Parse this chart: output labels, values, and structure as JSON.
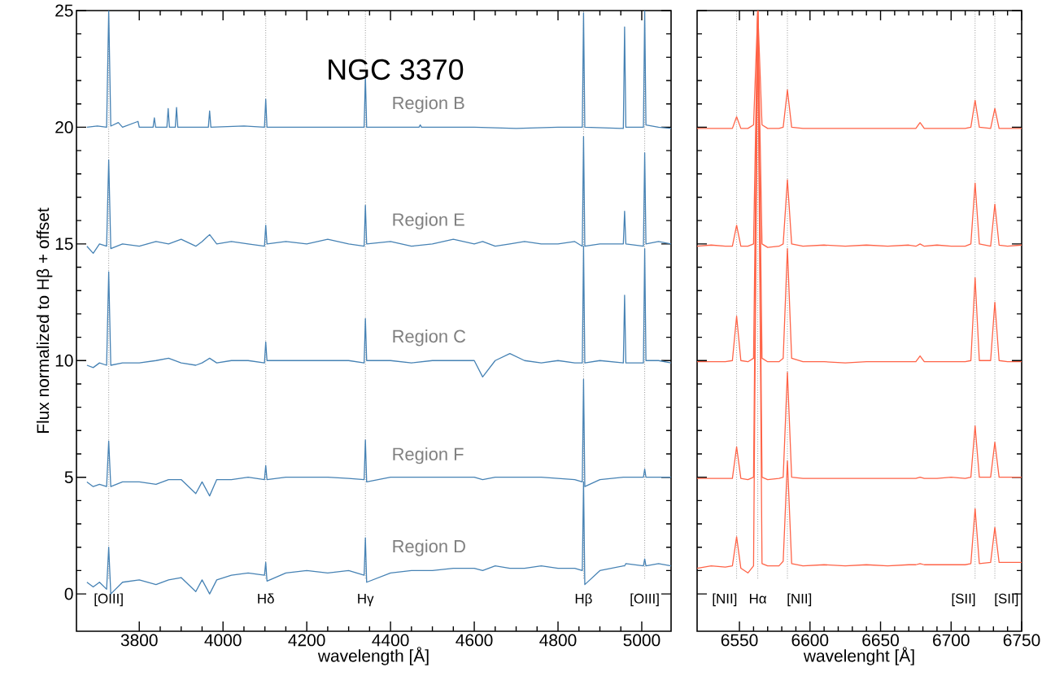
{
  "chart_data": [
    {
      "type": "line",
      "title": "NGC 3370",
      "xlabel": "wavelength [Å]",
      "ylabel": "Flux normalized to Hβ + offset",
      "xlim": [
        3650,
        5070
      ],
      "ylim": [
        -1.6,
        25
      ],
      "xticks": [
        3800,
        4000,
        4200,
        4400,
        4600,
        4800,
        5000
      ],
      "yticks": [
        0,
        5,
        10,
        15,
        20,
        25
      ],
      "series": [
        {
          "name": "Region B",
          "color": "#4682b4",
          "x": [
            3675,
            3700,
            3722,
            3727,
            3732,
            3750,
            3760,
            3797,
            3800,
            3833,
            3836,
            3839,
            3866,
            3869,
            3872,
            3886,
            3889,
            3892,
            3965,
            3968,
            3971,
            4050,
            4099,
            4102,
            4105,
            4200,
            4337,
            4340,
            4343,
            4468,
            4471,
            4474,
            4600,
            4700,
            4800,
            4858,
            4861,
            4864,
            4956,
            4959,
            4962,
            5004,
            5007,
            5010,
            5040,
            5070
          ],
          "values": [
            20.0,
            20.05,
            20.0,
            25,
            20.05,
            20.2,
            20.0,
            20.25,
            20.0,
            20.0,
            20.4,
            20.0,
            20.0,
            20.8,
            20.0,
            20.0,
            20.85,
            20.0,
            20.0,
            20.7,
            20.0,
            20.05,
            20.0,
            21.2,
            20.0,
            20.0,
            20.0,
            22.2,
            20.0,
            20.0,
            20.1,
            20.0,
            20.0,
            19.95,
            20.0,
            20.0,
            24.9,
            20.0,
            19.95,
            24.3,
            20.0,
            20.0,
            25,
            20.1,
            20.0,
            19.95
          ]
        },
        {
          "name": "Region E",
          "color": "#4682b4",
          "x": [
            3675,
            3690,
            3705,
            3722,
            3727,
            3732,
            3760,
            3800,
            3840,
            3870,
            3900,
            3935,
            3950,
            3968,
            3985,
            4020,
            4060,
            4099,
            4102,
            4105,
            4150,
            4200,
            4250,
            4300,
            4337,
            4340,
            4343,
            4400,
            4450,
            4500,
            4550,
            4600,
            4620,
            4650,
            4685,
            4720,
            4760,
            4800,
            4840,
            4858,
            4861,
            4864,
            4900,
            4956,
            4959,
            4962,
            5004,
            5007,
            5010,
            5040,
            5070
          ],
          "values": [
            14.9,
            14.6,
            15.0,
            14.9,
            18.6,
            14.8,
            15.0,
            14.9,
            15.1,
            15.0,
            15.2,
            14.9,
            15.1,
            15.4,
            15.0,
            15.1,
            15.0,
            14.9,
            15.8,
            15.0,
            15.1,
            15.0,
            15.2,
            15.0,
            14.9,
            16.65,
            15.0,
            15.1,
            14.9,
            15.0,
            15.2,
            15.0,
            15.1,
            14.9,
            15.0,
            15.1,
            15.0,
            15.0,
            15.1,
            14.9,
            19.6,
            14.9,
            15.0,
            15.0,
            16.4,
            15.0,
            14.9,
            18.9,
            15.0,
            15.1,
            15.0
          ]
        },
        {
          "name": "Region C",
          "color": "#4682b4",
          "x": [
            3675,
            3690,
            3705,
            3722,
            3727,
            3732,
            3760,
            3800,
            3840,
            3870,
            3900,
            3935,
            3950,
            3968,
            3985,
            4020,
            4060,
            4099,
            4102,
            4105,
            4150,
            4200,
            4250,
            4300,
            4337,
            4340,
            4343,
            4400,
            4450,
            4500,
            4550,
            4600,
            4620,
            4650,
            4685,
            4720,
            4760,
            4800,
            4840,
            4858,
            4861,
            4864,
            4900,
            4956,
            4959,
            4962,
            5004,
            5007,
            5010,
            5040,
            5070
          ],
          "values": [
            9.8,
            9.7,
            9.9,
            9.8,
            13.8,
            9.8,
            9.9,
            9.9,
            10.0,
            10.1,
            9.9,
            9.8,
            9.9,
            10.1,
            9.9,
            10.0,
            10.0,
            9.9,
            10.8,
            10.0,
            10.0,
            10.0,
            10.0,
            10.0,
            9.9,
            11.8,
            10.0,
            10.0,
            9.9,
            10.0,
            10.0,
            10.0,
            9.3,
            10.0,
            10.3,
            10.0,
            9.9,
            10.0,
            9.9,
            9.9,
            14.9,
            9.9,
            10.0,
            9.9,
            12.8,
            9.9,
            9.9,
            14.8,
            10.0,
            10.0,
            9.9
          ]
        },
        {
          "name": "Region F",
          "color": "#4682b4",
          "x": [
            3675,
            3690,
            3705,
            3722,
            3727,
            3732,
            3760,
            3800,
            3840,
            3870,
            3900,
            3935,
            3950,
            3968,
            3985,
            4020,
            4060,
            4099,
            4102,
            4105,
            4150,
            4200,
            4250,
            4300,
            4337,
            4340,
            4343,
            4400,
            4450,
            4500,
            4550,
            4600,
            4620,
            4650,
            4685,
            4720,
            4760,
            4800,
            4840,
            4858,
            4861,
            4864,
            4900,
            4956,
            4959,
            4962,
            5004,
            5007,
            5010,
            5040,
            5070
          ],
          "values": [
            4.8,
            4.6,
            4.7,
            4.6,
            6.55,
            4.6,
            4.8,
            4.8,
            4.7,
            4.9,
            4.9,
            4.3,
            4.8,
            4.2,
            4.9,
            4.9,
            5.0,
            4.9,
            5.5,
            4.9,
            5.0,
            5.0,
            5.0,
            4.95,
            4.9,
            6.6,
            4.8,
            5.0,
            5.0,
            5.0,
            5.0,
            5.0,
            4.9,
            5.0,
            5.0,
            5.0,
            5.0,
            4.95,
            4.9,
            4.8,
            9.2,
            4.6,
            4.9,
            5.0,
            5.0,
            5.0,
            5.0,
            5.35,
            5.0,
            5.0,
            5.0
          ]
        },
        {
          "name": "Region D",
          "color": "#4682b4",
          "x": [
            3675,
            3690,
            3705,
            3722,
            3727,
            3732,
            3760,
            3800,
            3840,
            3870,
            3900,
            3935,
            3950,
            3968,
            3985,
            4020,
            4060,
            4099,
            4102,
            4105,
            4150,
            4200,
            4250,
            4300,
            4337,
            4340,
            4343,
            4400,
            4450,
            4500,
            4550,
            4600,
            4620,
            4650,
            4685,
            4720,
            4760,
            4800,
            4840,
            4858,
            4861,
            4864,
            4900,
            4956,
            4959,
            4962,
            5004,
            5007,
            5010,
            5040,
            5070
          ],
          "values": [
            0.5,
            0.3,
            0.5,
            0.2,
            2.0,
            0.0,
            0.5,
            0.6,
            0.4,
            0.6,
            0.7,
            0.1,
            0.6,
            0.0,
            0.6,
            0.8,
            0.9,
            0.8,
            1.35,
            0.55,
            0.9,
            1.0,
            0.9,
            1.0,
            0.8,
            2.4,
            0.5,
            0.9,
            1.0,
            1.0,
            1.1,
            1.1,
            1.0,
            1.2,
            1.1,
            1.1,
            1.2,
            1.1,
            1.1,
            1.0,
            4.8,
            0.4,
            1.0,
            1.2,
            1.2,
            1.3,
            1.2,
            1.5,
            1.2,
            1.3,
            1.2
          ]
        }
      ],
      "ref_lines": [
        {
          "axis": "x",
          "value": 3727,
          "label": "[OIII]",
          "color": "#808080",
          "line_style": "dotted"
        },
        {
          "axis": "x",
          "value": 4102,
          "label": "Hδ",
          "color": "#808080",
          "line_style": "dotted"
        },
        {
          "axis": "x",
          "value": 4340,
          "label": "Hγ",
          "color": "#808080",
          "line_style": "dotted"
        },
        {
          "axis": "x",
          "value": 4861,
          "label": "Hβ",
          "color": "#808080",
          "line_style": "dotted"
        },
        {
          "axis": "x",
          "value": 5007,
          "label": "[OIII]",
          "color": "#808080",
          "line_style": "dotted"
        }
      ]
    },
    {
      "type": "line",
      "xlabel": "wavelenght [Å]",
      "xlim": [
        6520,
        6750
      ],
      "ylim": [
        -1.6,
        25
      ],
      "xticks": [
        6550,
        6600,
        6650,
        6700,
        6750
      ],
      "yticks": [
        0,
        5,
        10,
        15,
        20,
        25
      ],
      "tick_labels": "x",
      "series": [
        {
          "color": "#ff6347",
          "x": [
            6520,
            6530,
            6540,
            6545,
            6548,
            6551,
            6556,
            6560,
            6563,
            6566,
            6570,
            6578,
            6581,
            6584,
            6587,
            6595,
            6610,
            6625,
            6640,
            6655,
            6670,
            6675,
            6678,
            6681,
            6690,
            6700,
            6710,
            6714,
            6717,
            6720,
            6728,
            6731,
            6734,
            6740,
            6750
          ],
          "values": [
            19.95,
            19.95,
            19.95,
            19.95,
            20.45,
            19.95,
            19.95,
            20.1,
            25,
            20.1,
            19.95,
            19.95,
            20.0,
            21.6,
            20.0,
            19.95,
            19.95,
            19.95,
            19.95,
            19.95,
            19.95,
            19.95,
            20.2,
            19.95,
            19.95,
            19.95,
            19.95,
            20.0,
            21.15,
            20.0,
            19.95,
            20.8,
            19.95,
            19.95,
            19.95
          ]
        },
        {
          "color": "#ff6347",
          "x": [
            6520,
            6530,
            6540,
            6545,
            6548,
            6551,
            6556,
            6560,
            6563,
            6566,
            6570,
            6578,
            6581,
            6584,
            6587,
            6595,
            6610,
            6625,
            6640,
            6655,
            6670,
            6675,
            6678,
            6681,
            6690,
            6700,
            6710,
            6714,
            6717,
            6720,
            6728,
            6731,
            6734,
            6740,
            6750
          ],
          "values": [
            14.9,
            14.95,
            14.9,
            14.9,
            15.8,
            14.9,
            14.9,
            15.0,
            25,
            15.0,
            14.85,
            14.9,
            15.0,
            17.75,
            15.0,
            14.9,
            14.95,
            14.9,
            14.95,
            14.9,
            14.95,
            14.9,
            15.0,
            14.9,
            14.95,
            14.9,
            14.9,
            15.0,
            17.6,
            15.0,
            14.9,
            16.7,
            14.95,
            14.9,
            14.95
          ]
        },
        {
          "color": "#ff6347",
          "x": [
            6520,
            6530,
            6540,
            6545,
            6548,
            6551,
            6556,
            6560,
            6563,
            6566,
            6570,
            6578,
            6581,
            6584,
            6587,
            6595,
            6610,
            6625,
            6640,
            6655,
            6670,
            6675,
            6678,
            6681,
            6690,
            6700,
            6710,
            6714,
            6717,
            6720,
            6728,
            6731,
            6734,
            6740,
            6750
          ],
          "values": [
            9.95,
            9.95,
            9.95,
            10.0,
            11.9,
            10.0,
            9.95,
            10.1,
            25,
            10.1,
            9.95,
            9.95,
            10.1,
            14.8,
            10.1,
            9.95,
            9.95,
            9.9,
            9.95,
            9.95,
            9.95,
            9.95,
            10.2,
            9.95,
            9.95,
            9.95,
            9.95,
            10.0,
            13.55,
            10.0,
            10.0,
            12.5,
            10.0,
            9.95,
            9.95
          ]
        },
        {
          "color": "#ff6347",
          "x": [
            6520,
            6530,
            6540,
            6545,
            6548,
            6551,
            6556,
            6560,
            6563,
            6566,
            6570,
            6578,
            6581,
            6584,
            6587,
            6595,
            6610,
            6625,
            6640,
            6655,
            6670,
            6675,
            6678,
            6681,
            6690,
            6700,
            6710,
            6714,
            6717,
            6720,
            6728,
            6731,
            6734,
            6740,
            6750
          ],
          "values": [
            4.95,
            4.95,
            4.95,
            4.95,
            6.3,
            4.95,
            4.9,
            5.0,
            25,
            5.0,
            4.9,
            4.95,
            5.0,
            9.5,
            5.0,
            4.95,
            4.95,
            4.95,
            4.95,
            4.95,
            4.95,
            4.95,
            5.0,
            4.95,
            4.95,
            5.0,
            4.95,
            5.0,
            7.2,
            5.0,
            5.0,
            6.5,
            5.0,
            5.0,
            5.0
          ]
        },
        {
          "color": "#ff6347",
          "x": [
            6520,
            6530,
            6540,
            6545,
            6548,
            6551,
            6556,
            6560,
            6563,
            6566,
            6570,
            6578,
            6581,
            6584,
            6587,
            6595,
            6610,
            6625,
            6640,
            6655,
            6670,
            6675,
            6678,
            6681,
            6690,
            6700,
            6710,
            6714,
            6717,
            6720,
            6728,
            6731,
            6734,
            6740,
            6750
          ],
          "values": [
            1.1,
            1.2,
            1.15,
            1.2,
            2.45,
            1.1,
            0.9,
            1.2,
            25,
            1.3,
            1.2,
            1.2,
            1.4,
            5.7,
            1.3,
            1.2,
            1.25,
            1.2,
            1.25,
            1.2,
            1.25,
            1.25,
            1.3,
            1.25,
            1.25,
            1.25,
            1.25,
            1.3,
            3.65,
            1.3,
            1.35,
            2.85,
            1.35,
            1.35,
            1.35
          ]
        }
      ],
      "ref_lines": [
        {
          "axis": "x",
          "value": 6548,
          "label": "[NII]",
          "color": "#808080",
          "line_style": "dotted"
        },
        {
          "axis": "x",
          "value": 6563,
          "label": "Hα",
          "color": "#808080",
          "line_style": "dotted"
        },
        {
          "axis": "x",
          "value": 6584,
          "label": "[NII]",
          "color": "#808080",
          "line_style": "dotted"
        },
        {
          "axis": "x",
          "value": 6717,
          "label": "[SII]",
          "color": "#808080",
          "line_style": "dotted"
        },
        {
          "axis": "x",
          "value": 6731,
          "label": "[SII]",
          "color": "#808080",
          "line_style": "dotted"
        }
      ]
    }
  ]
}
